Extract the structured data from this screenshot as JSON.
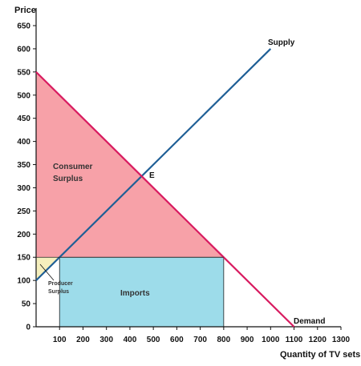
{
  "chart_data": {
    "type": "line",
    "xlabel": "Quantity of TV sets",
    "ylabel": "Price",
    "xlim": [
      0,
      1300
    ],
    "ylim": [
      0,
      650
    ],
    "x_ticks": [
      100,
      200,
      300,
      400,
      500,
      600,
      700,
      800,
      900,
      1000,
      1100,
      1200,
      1300
    ],
    "y_ticks": [
      0,
      50,
      100,
      150,
      200,
      250,
      300,
      350,
      400,
      450,
      500,
      550,
      600,
      650
    ],
    "x_tick_labels": [
      "100",
      "200",
      "300",
      "400",
      "500",
      "600",
      "700",
      "800",
      "900",
      "1000",
      "1100",
      "1200",
      "1300"
    ],
    "y_tick_labels": [
      "0",
      "50",
      "100",
      "150",
      "200",
      "250",
      "300",
      "350",
      "400",
      "450",
      "500",
      "550",
      "600",
      "650"
    ],
    "series": [
      {
        "name": "Supply",
        "color": "#1f5f96",
        "points": [
          [
            0,
            100
          ],
          [
            1000,
            600
          ]
        ]
      },
      {
        "name": "Demand",
        "color": "#d81b60",
        "points": [
          [
            0,
            550
          ],
          [
            1100,
            0
          ]
        ]
      }
    ],
    "equilibrium": {
      "label": "E",
      "x": 450,
      "y": 325
    },
    "world_price": 150,
    "regions": [
      {
        "name": "Consumer Surplus",
        "label_lines": [
          "Consumer",
          "Surplus"
        ],
        "color": "#f7a1a8",
        "polygon": [
          [
            0,
            550
          ],
          [
            0,
            150
          ],
          [
            800,
            150
          ]
        ]
      },
      {
        "name": "Producer Surplus",
        "label_lines": [
          "Producer",
          "Surplus"
        ],
        "color": "#f5efbd",
        "polygon": [
          [
            0,
            100
          ],
          [
            0,
            150
          ],
          [
            100,
            150
          ]
        ]
      },
      {
        "name": "Imports",
        "label_lines": [
          "Imports"
        ],
        "color": "#9ddcea",
        "polygon": [
          [
            100,
            150
          ],
          [
            800,
            150
          ],
          [
            800,
            0
          ],
          [
            100,
            0
          ]
        ]
      }
    ]
  }
}
